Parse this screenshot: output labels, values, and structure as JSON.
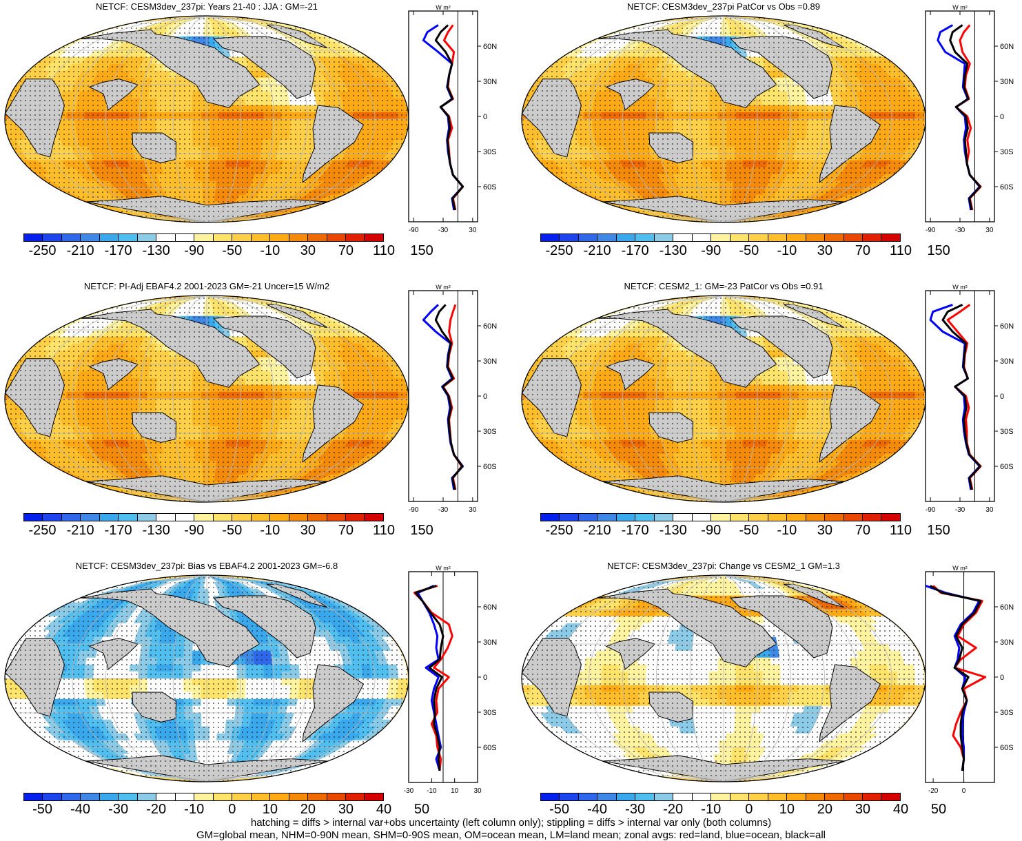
{
  "chart_data": [
    {
      "type": "heatmap",
      "title": "NETCF: CESM3dev_237pi: Years 21-40 : JJA : GM=-21",
      "colorbar_ticks": [
        "-250",
        "-210",
        "-170",
        "-130",
        "-90",
        "-50",
        "-10",
        "30",
        "70",
        "110",
        "150"
      ],
      "zonal": {
        "unit_label": "W m²",
        "x_ticks": [
          "-90",
          "-30",
          "30"
        ],
        "x_range": [
          -100,
          40
        ],
        "y_ticks": [
          "60N",
          "30N",
          "0",
          "30S",
          "60S"
        ],
        "lat_range": [
          -90,
          90
        ],
        "series": [
          {
            "color": "#ff0000",
            "lat": [
              78,
              72,
              65,
              55,
              45,
              35,
              25,
              15,
              8,
              0,
              -10,
              -20,
              -30,
              -40,
              -50,
              -60,
              -70,
              -80
            ],
            "values": [
              -10,
              -20,
              -28,
              -8,
              -12,
              -18,
              -20,
              -10,
              -35,
              -18,
              -12,
              -20,
              -18,
              -16,
              -10,
              10,
              -10,
              -5
            ]
          },
          {
            "color": "#0000ff",
            "lat": [
              78,
              72,
              65,
              55,
              45,
              35,
              25,
              15,
              8,
              0,
              -10,
              -20,
              -30,
              -40,
              -50,
              -60,
              -70,
              -80
            ],
            "values": [
              -40,
              -62,
              -70,
              -40,
              -12,
              -18,
              -22,
              -12,
              -35,
              -20,
              -18,
              -22,
              -20,
              -16,
              -10,
              10,
              -12,
              -8
            ]
          },
          {
            "color": "#000000",
            "lat": [
              78,
              72,
              65,
              55,
              45,
              35,
              25,
              15,
              8,
              0,
              -10,
              -20,
              -30,
              -40,
              -50,
              -60,
              -70,
              -80
            ],
            "values": [
              -20,
              -35,
              -45,
              -25,
              -12,
              -18,
              -21,
              -11,
              -35,
              -19,
              -16,
              -21,
              -19,
              -16,
              -10,
              10,
              -11,
              -6
            ]
          }
        ]
      }
    },
    {
      "type": "heatmap",
      "title": "NETCF: CESM3dev_237pi PatCor vs Obs =0.89",
      "colorbar_ticks": [
        "-250",
        "-210",
        "-170",
        "-130",
        "-90",
        "-50",
        "-10",
        "30",
        "70",
        "110",
        "150"
      ],
      "zonal": {
        "unit_label": "W m²",
        "x_ticks": [
          "-90",
          "-30",
          "30"
        ],
        "x_range": [
          -100,
          40
        ],
        "y_ticks": [
          "60N",
          "30N",
          "0",
          "30S",
          "60S"
        ],
        "lat_range": [
          -90,
          90
        ],
        "series": [
          {
            "color": "#ff0000",
            "lat": [
              78,
              72,
              65,
              55,
              45,
              35,
              25,
              15,
              8,
              0,
              -10,
              -20,
              -30,
              -40,
              -50,
              -60,
              -70,
              -80
            ],
            "values": [
              -10,
              -22,
              -30,
              -25,
              -10,
              -18,
              -20,
              -12,
              -38,
              -15,
              -8,
              -15,
              -12,
              -16,
              -10,
              12,
              -10,
              -5
            ]
          },
          {
            "color": "#0000ff",
            "lat": [
              78,
              72,
              65,
              55,
              45,
              35,
              25,
              15,
              8,
              0,
              -10,
              -20,
              -30,
              -40,
              -50,
              -60,
              -70,
              -80
            ],
            "values": [
              -45,
              -70,
              -75,
              -60,
              -20,
              -22,
              -24,
              -14,
              -38,
              -20,
              -18,
              -22,
              -20,
              -16,
              -10,
              10,
              -12,
              -8
            ]
          },
          {
            "color": "#000000",
            "lat": [
              78,
              72,
              65,
              55,
              45,
              35,
              25,
              15,
              8,
              0,
              -10,
              -20,
              -30,
              -40,
              -50,
              -60,
              -70,
              -80
            ],
            "values": [
              -25,
              -45,
              -50,
              -40,
              -15,
              -20,
              -22,
              -13,
              -38,
              -18,
              -14,
              -20,
              -18,
              -16,
              -10,
              11,
              -11,
              -6
            ]
          }
        ]
      }
    },
    {
      "type": "heatmap",
      "title": "NETCF: PI-Adj EBAF4.2 2001-2023 GM=-21 Uncer=15 W/m2",
      "colorbar_ticks": [
        "-250",
        "-210",
        "-170",
        "-130",
        "-90",
        "-50",
        "-10",
        "30",
        "70",
        "110",
        "150"
      ],
      "zonal": {
        "unit_label": "W m²",
        "x_ticks": [
          "-90",
          "-30",
          "30"
        ],
        "x_range": [
          -100,
          40
        ],
        "y_ticks": [
          "60N",
          "30N",
          "0",
          "30S",
          "60S"
        ],
        "lat_range": [
          -90,
          90
        ],
        "series": [
          {
            "color": "#ff0000",
            "lat": [
              78,
              72,
              65,
              55,
              45,
              35,
              25,
              15,
              8,
              0,
              -10,
              -20,
              -30,
              -40,
              -50,
              -60,
              -70,
              -80
            ],
            "values": [
              -5,
              -10,
              -15,
              -18,
              -12,
              -18,
              -20,
              -8,
              -30,
              -18,
              -12,
              -18,
              -16,
              -14,
              -8,
              8,
              -10,
              -5
            ]
          },
          {
            "color": "#0000ff",
            "lat": [
              78,
              72,
              65,
              55,
              45,
              35,
              25,
              15,
              8,
              0,
              -10,
              -20,
              -30,
              -40,
              -50,
              -60,
              -70,
              -80
            ],
            "values": [
              -40,
              -55,
              -70,
              -45,
              -15,
              -20,
              -22,
              -12,
              -32,
              -20,
              -16,
              -20,
              -18,
              -15,
              -8,
              10,
              -12,
              -8
            ]
          },
          {
            "color": "#000000",
            "lat": [
              78,
              72,
              65,
              55,
              45,
              35,
              25,
              15,
              8,
              0,
              -10,
              -20,
              -30,
              -40,
              -50,
              -60,
              -70,
              -80
            ],
            "values": [
              -25,
              -38,
              -45,
              -32,
              -14,
              -19,
              -21,
              -10,
              -31,
              -19,
              -14,
              -19,
              -17,
              -14,
              -8,
              9,
              -11,
              -6
            ]
          }
        ]
      }
    },
    {
      "type": "heatmap",
      "title": "NETCF: CESM2_1: GM=-23 PatCor vs Obs =0.91",
      "colorbar_ticks": [
        "-250",
        "-210",
        "-170",
        "-130",
        "-90",
        "-50",
        "-10",
        "30",
        "70",
        "110",
        "150"
      ],
      "zonal": {
        "unit_label": "W m²",
        "x_ticks": [
          "-90",
          "-30",
          "30"
        ],
        "x_range": [
          -100,
          40
        ],
        "y_ticks": [
          "60N",
          "30N",
          "0",
          "30S",
          "60S"
        ],
        "lat_range": [
          -90,
          90
        ],
        "series": [
          {
            "color": "#ff0000",
            "lat": [
              78,
              72,
              65,
              55,
              45,
              35,
              25,
              15,
              8,
              0,
              -10,
              -20,
              -30,
              -40,
              -50,
              -60,
              -70,
              -80
            ],
            "values": [
              -10,
              -30,
              -55,
              -35,
              -15,
              -20,
              -22,
              -14,
              -40,
              -18,
              -12,
              -18,
              -16,
              -16,
              -10,
              12,
              -10,
              -5
            ]
          },
          {
            "color": "#0000ff",
            "lat": [
              78,
              72,
              65,
              55,
              45,
              35,
              25,
              15,
              8,
              0,
              -10,
              -20,
              -30,
              -40,
              -50,
              -60,
              -70,
              -80
            ],
            "values": [
              -45,
              -85,
              -90,
              -65,
              -20,
              -22,
              -24,
              -14,
              -40,
              -22,
              -20,
              -24,
              -22,
              -18,
              -12,
              10,
              -12,
              -8
            ]
          },
          {
            "color": "#000000",
            "lat": [
              78,
              72,
              65,
              55,
              45,
              35,
              25,
              15,
              8,
              0,
              -10,
              -20,
              -30,
              -40,
              -50,
              -60,
              -70,
              -80
            ],
            "values": [
              -25,
              -55,
              -65,
              -45,
              -18,
              -21,
              -23,
              -14,
              -40,
              -20,
              -17,
              -22,
              -20,
              -17,
              -11,
              11,
              -11,
              -6
            ]
          }
        ]
      }
    },
    {
      "type": "heatmap",
      "title": "NETCF: CESM3dev_237pi: Bias vs EBAF4.2 2001-2023 GM=-6.8",
      "colorbar_ticks": [
        "-50",
        "-40",
        "-30",
        "-20",
        "-10",
        "0",
        "10",
        "20",
        "30",
        "40",
        "50"
      ],
      "zonal": {
        "unit_label": "W m²",
        "x_ticks": [
          "-30",
          "-10",
          "10",
          "30"
        ],
        "x_range": [
          -30,
          30
        ],
        "y_ticks": [
          "60N",
          "30N",
          "0",
          "30S",
          "60S"
        ],
        "lat_range": [
          -90,
          90
        ],
        "series": [
          {
            "color": "#ff0000",
            "lat": [
              78,
              72,
              65,
              55,
              45,
              35,
              25,
              15,
              8,
              0,
              -10,
              -20,
              -30,
              -40,
              -50,
              -60,
              -70,
              -80
            ],
            "values": [
              -5,
              -25,
              -18,
              -10,
              5,
              8,
              4,
              -2,
              -8,
              5,
              -4,
              -6,
              -5,
              -10,
              -6,
              -5,
              -2,
              -3
            ]
          },
          {
            "color": "#0000ff",
            "lat": [
              78,
              72,
              65,
              55,
              45,
              35,
              25,
              15,
              8,
              0,
              -10,
              -20,
              -30,
              -40,
              -50,
              -60,
              -70,
              -80
            ],
            "values": [
              -8,
              -22,
              -18,
              -12,
              -8,
              -5,
              -6,
              -4,
              -15,
              -4,
              -8,
              -10,
              -8,
              -6,
              -4,
              -2,
              -6,
              -3
            ]
          },
          {
            "color": "#000000",
            "lat": [
              78,
              72,
              65,
              55,
              45,
              35,
              25,
              15,
              8,
              0,
              -10,
              -20,
              -30,
              -40,
              -50,
              -60,
              -70,
              -80
            ],
            "values": [
              -6,
              -24,
              -18,
              -11,
              -3,
              0,
              -2,
              -3,
              -12,
              -1,
              -6,
              -8,
              -7,
              -8,
              -5,
              -3,
              -4,
              -3
            ]
          }
        ]
      }
    },
    {
      "type": "heatmap",
      "title": "NETCF: CESM3dev_237pi: Change vs CESM2_1 GM=1.3",
      "colorbar_ticks": [
        "-50",
        "-40",
        "-30",
        "-20",
        "-10",
        "0",
        "10",
        "20",
        "30",
        "40",
        "50"
      ],
      "zonal": {
        "unit_label": "W m²",
        "x_ticks": [
          "-20",
          "0"
        ],
        "x_range": [
          -25,
          20
        ],
        "y_ticks": [
          "60N",
          "30N",
          "0",
          "30S",
          "60S"
        ],
        "lat_range": [
          -90,
          90
        ],
        "series": [
          {
            "color": "#ff0000",
            "lat": [
              78,
              72,
              65,
              55,
              45,
              35,
              25,
              15,
              8,
              0,
              -10,
              -20,
              -30,
              -40,
              -50,
              -60,
              -70,
              -80
            ],
            "values": [
              -20,
              -15,
              12,
              8,
              0,
              -4,
              8,
              -2,
              -6,
              14,
              0,
              2,
              -2,
              -5,
              -7,
              -2,
              0,
              -1
            ]
          },
          {
            "color": "#0000ff",
            "lat": [
              78,
              72,
              65,
              55,
              45,
              35,
              25,
              15,
              8,
              0,
              -10,
              -20,
              -30,
              -40,
              -50,
              -60,
              -70,
              -80
            ],
            "values": [
              -25,
              -12,
              10,
              6,
              -2,
              -6,
              -3,
              -4,
              -6,
              1,
              -1,
              2,
              0,
              -1,
              -1,
              0,
              0,
              -1
            ]
          },
          {
            "color": "#000000",
            "lat": [
              78,
              72,
              65,
              55,
              45,
              35,
              25,
              15,
              8,
              0,
              -10,
              -20,
              -30,
              -40,
              -50,
              -60,
              -70,
              -80
            ],
            "values": [
              -22,
              -14,
              11,
              7,
              -1,
              -5,
              -1,
              -3,
              -6,
              3,
              -1,
              2,
              -1,
              -2,
              -2,
              -1,
              0,
              -1
            ]
          }
        ]
      }
    }
  ],
  "colors": {
    "palette": [
      "#0320ee",
      "#1d45ee",
      "#2f68ea",
      "#3f88e5",
      "#3aa8ec",
      "#50bff0",
      "#8ccbe8",
      "#ffffff",
      "#ffffff",
      "#fff3a0",
      "#ffe36a",
      "#ffd048",
      "#ffbe2a",
      "#ffaa14",
      "#f58a08",
      "#ee6a00",
      "#e84800",
      "#e02000",
      "#d40000"
    ],
    "land": "#cccccc",
    "graticule": "#b8b8b8"
  },
  "footer": {
    "line1": "hatching = diffs > internal var+obs uncertainty (left column only); stippling = diffs > internal var only (both columns)",
    "line2": "GM=global mean, NHM=0-90N mean, SHM=0-90S mean, OM=ocean mean, LM=land mean; zonal avgs: red=land, blue=ocean, black=all"
  }
}
